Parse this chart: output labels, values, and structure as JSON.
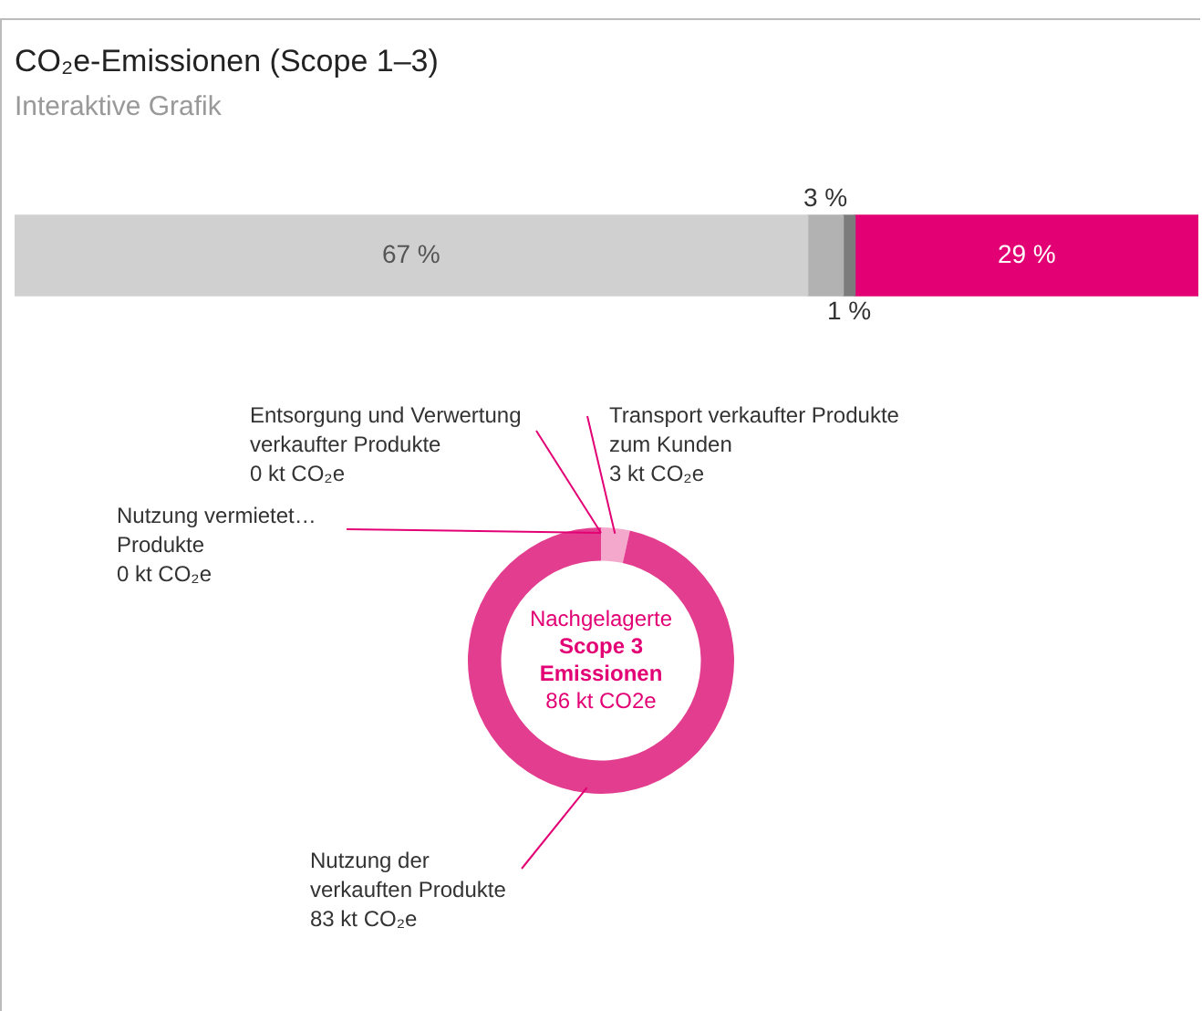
{
  "chart_data": [
    {
      "type": "bar",
      "title": "CO₂e-Emissionen (Scope 1–3)",
      "subtitle": "Interaktive Grafik",
      "orientation": "horizontal",
      "stacked": true,
      "categories": [
        null
      ],
      "xlim": [
        0,
        100
      ],
      "tick_labels": false,
      "legend": false,
      "data_labels": true,
      "series": [
        {
          "color": "#d0d0d0",
          "values": [
            67
          ],
          "value_labels": [
            "67 %"
          ]
        },
        {
          "color": "#b2b2b2",
          "values": [
            3
          ],
          "value_labels": [
            "3 %"
          ]
        },
        {
          "color": "#7c7c7c",
          "values": [
            1
          ],
          "value_labels": [
            "1 %"
          ]
        },
        {
          "color": "#e20074",
          "values": [
            29
          ],
          "value_labels": [
            "29 %"
          ]
        }
      ]
    },
    {
      "type": "donut",
      "categories": [
        "Transport verkaufter Produkte zum Kunden",
        "Nutzung der verkauften Produkte",
        "Nutzung vermietet… Produkte",
        "Entsorgung und Verwertung verkaufter Produkte"
      ],
      "values": [
        3,
        83,
        0,
        0
      ],
      "value_labels": [
        "3 kt CO₂e",
        "83 kt CO₂e",
        "0 kt CO₂e",
        "0 kt CO₂e"
      ],
      "colors": [
        "#f4a9cc",
        "#e33d8f",
        "#e20074",
        "#e20074"
      ],
      "legend": false,
      "annotations": [
        "Nachgelagerte",
        "Scope 3",
        "Emissionen",
        "86 kt CO2e"
      ]
    }
  ]
}
